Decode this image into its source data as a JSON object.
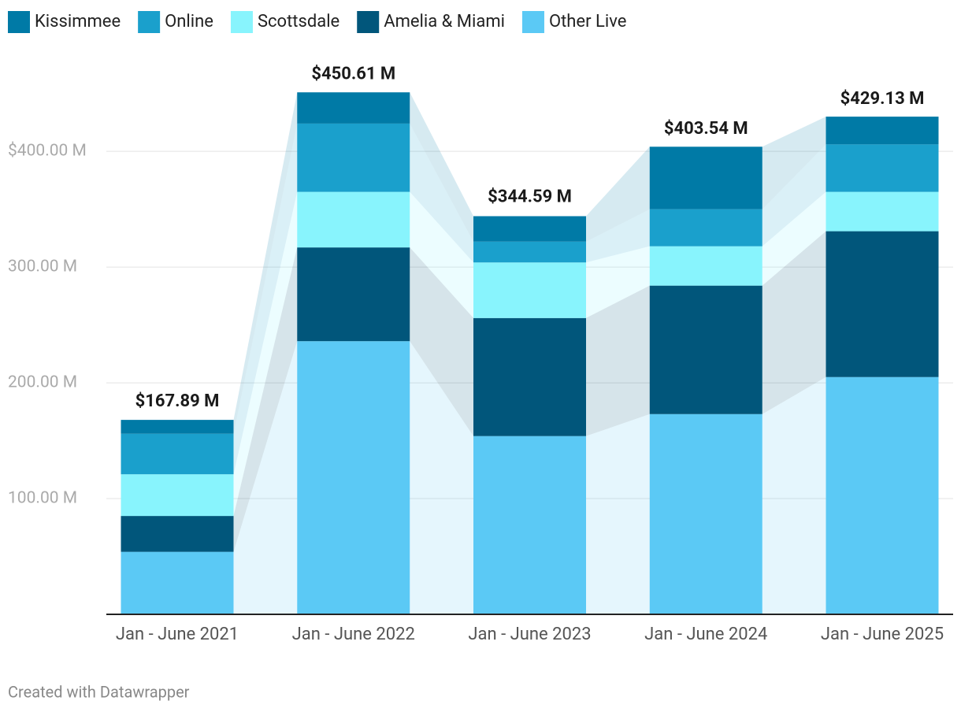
{
  "chart_data": {
    "type": "stacked-bar",
    "categories": [
      "Jan - June 2021",
      "Jan - June 2022",
      "Jan - June 2023",
      "Jan - June 2024",
      "Jan - June 2025"
    ],
    "series": [
      {
        "name": "Other Live",
        "color": "#5bc9f5",
        "values": [
          54,
          236,
          154,
          173,
          205
        ]
      },
      {
        "name": "Amelia & Miami",
        "color": "#01567b",
        "values": [
          31,
          81,
          102,
          111,
          126
        ]
      },
      {
        "name": "Scottsdale",
        "color": "#88f4fd",
        "values": [
          36,
          48,
          48,
          34,
          34
        ]
      },
      {
        "name": "Online",
        "color": "#1aa0cc",
        "values": [
          35,
          59,
          18,
          32,
          41
        ]
      },
      {
        "name": "Kissimmee",
        "color": "#007aa6",
        "values": [
          12,
          27,
          22,
          54,
          24
        ]
      }
    ],
    "totals": {
      "values": [
        167.89,
        450.61,
        344.59,
        403.54,
        429.13
      ],
      "value_labels": [
        "$167.89 M",
        "$450.61 M",
        "$344.59 M",
        "$403.54 M",
        "$429.13 M"
      ]
    },
    "legend_order": [
      4,
      3,
      2,
      1,
      0
    ],
    "ylim": [
      0,
      460
    ],
    "yticks": [
      {
        "value": 100,
        "label": "100.00 M"
      },
      {
        "value": 200,
        "label": "200.00 M"
      },
      {
        "value": 300,
        "label": "300.00 M"
      },
      {
        "value": 400,
        "label": "$400.00 M"
      }
    ],
    "grid": true,
    "footer": "Created with Datawrapper"
  }
}
